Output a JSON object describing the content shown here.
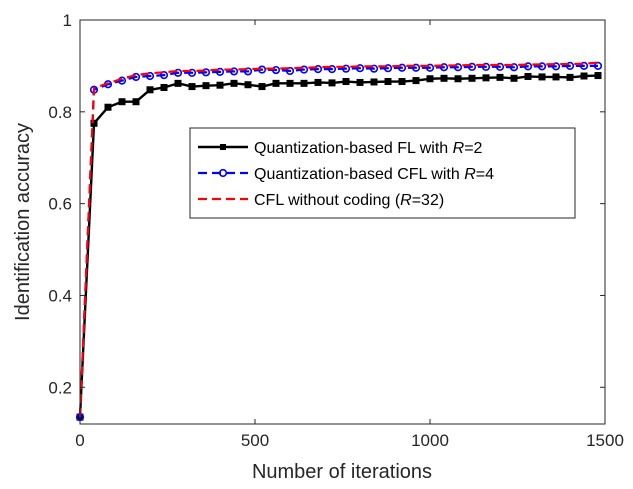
{
  "chart_data": {
    "type": "line",
    "xlabel": "Number of iterations",
    "ylabel": "Identification accuracy",
    "xlim": [
      0,
      1500
    ],
    "ylim": [
      0.12,
      1.0
    ],
    "x_ticks": [
      0,
      500,
      1000,
      1500
    ],
    "y_ticks": [
      0.2,
      0.4,
      0.6,
      0.8,
      1
    ],
    "x_tick_labels": [
      "0",
      "500",
      "1000",
      "1500"
    ],
    "y_tick_labels": [
      "0.2",
      "0.4",
      "0.6",
      "0.8",
      "1"
    ],
    "grid": false,
    "legend_position": "center-right",
    "series": [
      {
        "legend_prefix": "Quantization-based FL with ",
        "legend_italic": "R",
        "legend_suffix": "=2",
        "color": "#000000",
        "dash": "solid",
        "marker": "square",
        "x": [
          0,
          40,
          80,
          120,
          160,
          200,
          240,
          280,
          320,
          360,
          400,
          440,
          480,
          520,
          560,
          600,
          640,
          680,
          720,
          760,
          800,
          840,
          880,
          920,
          960,
          1000,
          1040,
          1080,
          1120,
          1160,
          1200,
          1240,
          1280,
          1320,
          1360,
          1400,
          1440,
          1480
        ],
        "y": [
          0.135,
          0.775,
          0.81,
          0.822,
          0.822,
          0.848,
          0.853,
          0.862,
          0.855,
          0.857,
          0.858,
          0.862,
          0.859,
          0.855,
          0.862,
          0.862,
          0.862,
          0.864,
          0.863,
          0.866,
          0.864,
          0.865,
          0.866,
          0.866,
          0.868,
          0.872,
          0.873,
          0.872,
          0.873,
          0.874,
          0.875,
          0.873,
          0.877,
          0.876,
          0.876,
          0.875,
          0.878,
          0.879
        ]
      },
      {
        "legend_prefix": "Quantization-based CFL with ",
        "legend_italic": "R",
        "legend_suffix": "=4",
        "color": "#0000ff",
        "dash": "dash",
        "marker": "circle",
        "x": [
          0,
          40,
          80,
          120,
          160,
          200,
          240,
          280,
          320,
          360,
          400,
          440,
          480,
          520,
          560,
          600,
          640,
          680,
          720,
          760,
          800,
          840,
          880,
          920,
          960,
          1000,
          1040,
          1080,
          1120,
          1160,
          1200,
          1240,
          1280,
          1320,
          1360,
          1400,
          1440,
          1480
        ],
        "y": [
          0.135,
          0.848,
          0.86,
          0.868,
          0.876,
          0.878,
          0.88,
          0.885,
          0.885,
          0.886,
          0.887,
          0.888,
          0.888,
          0.892,
          0.891,
          0.889,
          0.892,
          0.893,
          0.893,
          0.894,
          0.895,
          0.894,
          0.895,
          0.896,
          0.896,
          0.896,
          0.897,
          0.897,
          0.898,
          0.898,
          0.898,
          0.897,
          0.899,
          0.899,
          0.899,
          0.9,
          0.9,
          0.9
        ]
      },
      {
        "legend_prefix": "CFL without coding (",
        "legend_italic": "R",
        "legend_suffix": "=32)",
        "color": "#ff0000",
        "dash": "dash",
        "marker": "none",
        "x": [
          0,
          40,
          80,
          120,
          160,
          200,
          240,
          280,
          320,
          360,
          400,
          440,
          480,
          520,
          560,
          600,
          640,
          680,
          720,
          760,
          800,
          840,
          880,
          920,
          960,
          1000,
          1040,
          1080,
          1120,
          1160,
          1200,
          1240,
          1280,
          1320,
          1360,
          1400,
          1440,
          1480
        ],
        "y": [
          0.135,
          0.852,
          0.862,
          0.872,
          0.88,
          0.884,
          0.886,
          0.889,
          0.889,
          0.89,
          0.892,
          0.892,
          0.893,
          0.894,
          0.894,
          0.895,
          0.896,
          0.897,
          0.898,
          0.898,
          0.899,
          0.899,
          0.899,
          0.9,
          0.9,
          0.9,
          0.901,
          0.901,
          0.902,
          0.902,
          0.902,
          0.902,
          0.903,
          0.903,
          0.904,
          0.904,
          0.905,
          0.907
        ]
      }
    ]
  }
}
